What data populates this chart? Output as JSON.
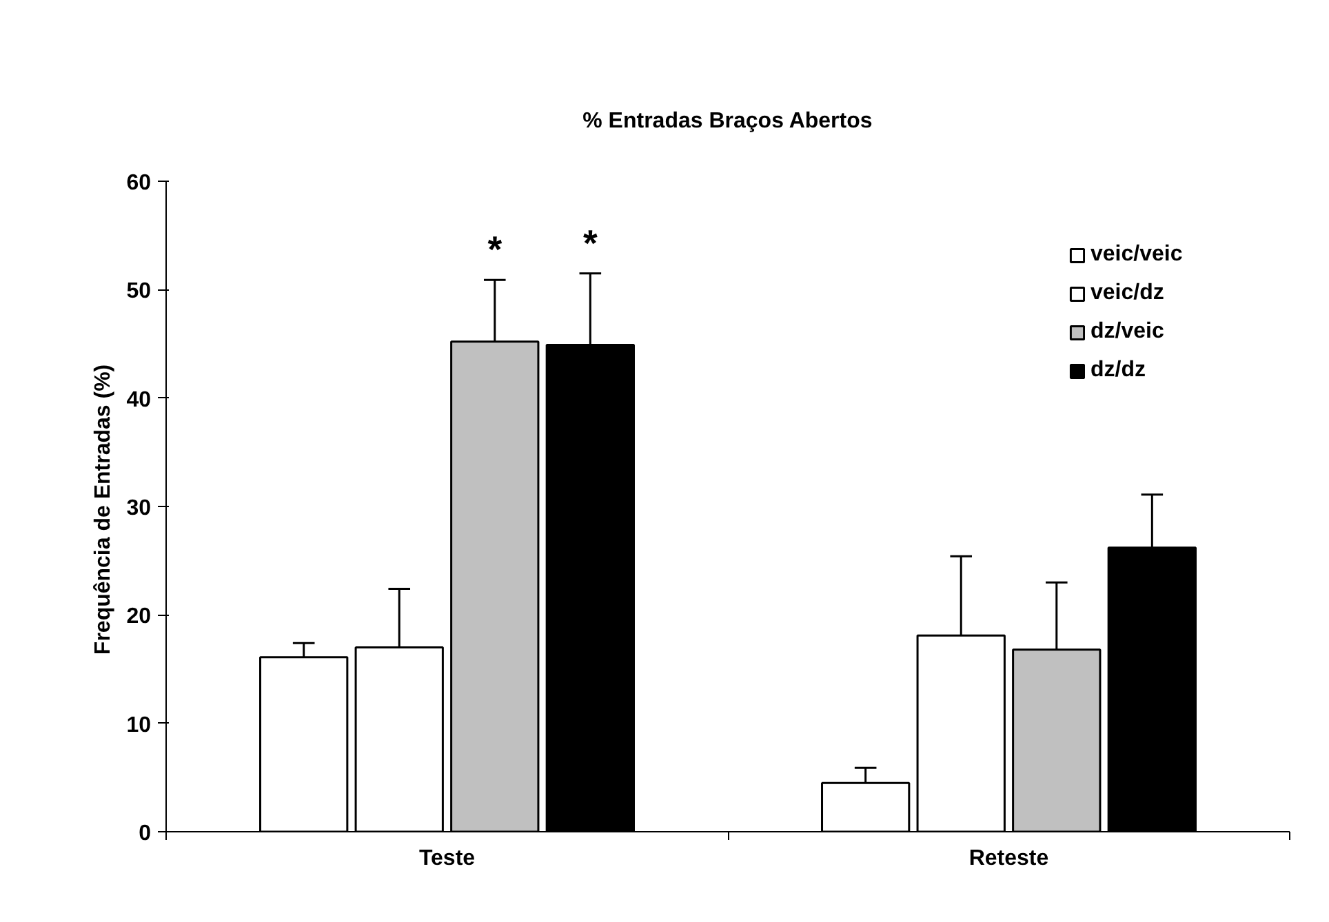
{
  "chart_data": {
    "type": "bar",
    "title": "% Entradas Braços Abertos",
    "ylabel": "Frequência de Entradas  (%)",
    "categories": [
      "Teste",
      "Reteste"
    ],
    "series": [
      {
        "name": "veic/veic",
        "color": "#ffffff",
        "values": [
          16.1,
          4.5
        ],
        "errors": [
          [
            16.1,
            17.4
          ],
          [
            4.5,
            5.9
          ]
        ]
      },
      {
        "name": "veic/dz",
        "color": "#ffffff",
        "values": [
          17.0,
          18.1
        ],
        "errors": [
          [
            17.0,
            22.4
          ],
          [
            18.1,
            25.4
          ]
        ]
      },
      {
        "name": "dz/veic",
        "color": "#c0c0c0",
        "values": [
          45.2,
          16.8
        ],
        "errors": [
          [
            45.2,
            50.9
          ],
          [
            16.8,
            23.0
          ]
        ]
      },
      {
        "name": "dz/dz",
        "color": "#000000",
        "values": [
          44.9,
          26.2
        ],
        "errors": [
          [
            44.9,
            51.5
          ],
          [
            26.2,
            31.1
          ]
        ]
      }
    ],
    "annotations": [
      "*",
      "*"
    ],
    "ylim": [
      0,
      60
    ],
    "yticks": [
      0,
      10,
      20,
      30,
      40,
      50,
      60
    ],
    "grid": false,
    "legend": "top right"
  }
}
